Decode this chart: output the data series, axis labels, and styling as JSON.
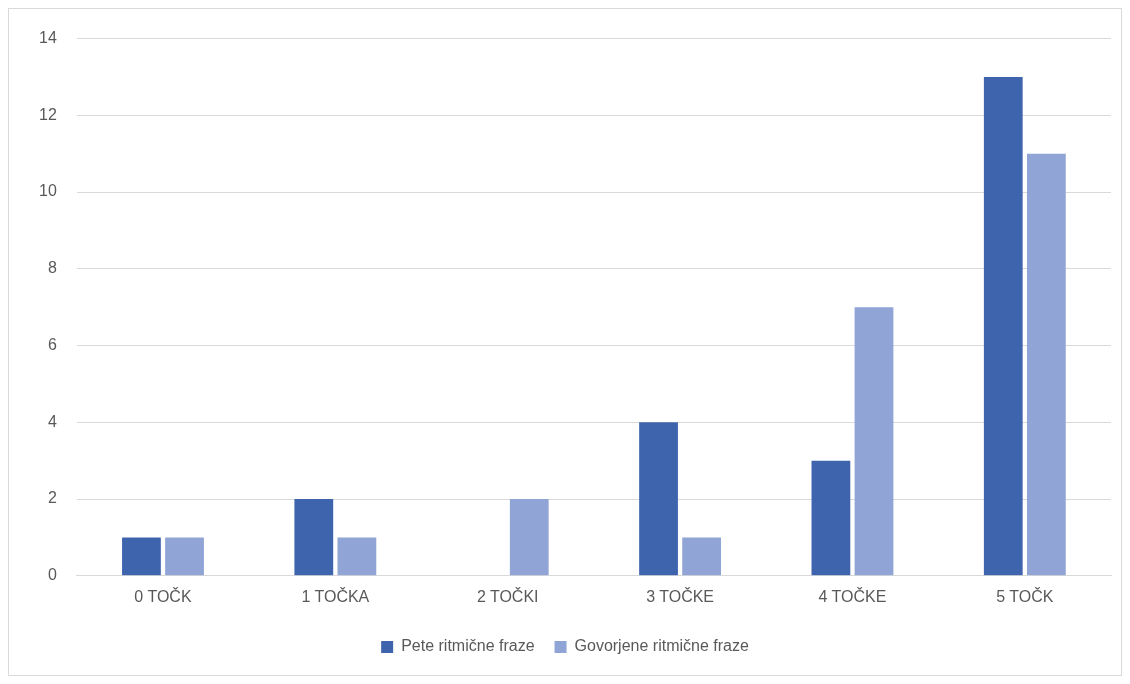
{
  "chart_data": {
    "type": "bar",
    "categories": [
      "0 TOČK",
      "1 TOČKA",
      "2 TOČKI",
      "3 TOČKE",
      "4 TOČKE",
      "5 TOČK"
    ],
    "series": [
      {
        "name": "Pete ritmične fraze",
        "color": "#3f64ae",
        "values": [
          1,
          2,
          0,
          4,
          3,
          13
        ]
      },
      {
        "name": "Govorjene ritmične fraze",
        "color": "#90a5d6",
        "values": [
          1,
          1,
          2,
          1,
          7,
          11
        ]
      }
    ],
    "ylim": [
      0,
      14
    ],
    "yticks": [
      0,
      2,
      4,
      6,
      8,
      10,
      12,
      14
    ],
    "grid": "y",
    "legend": "bottom"
  }
}
